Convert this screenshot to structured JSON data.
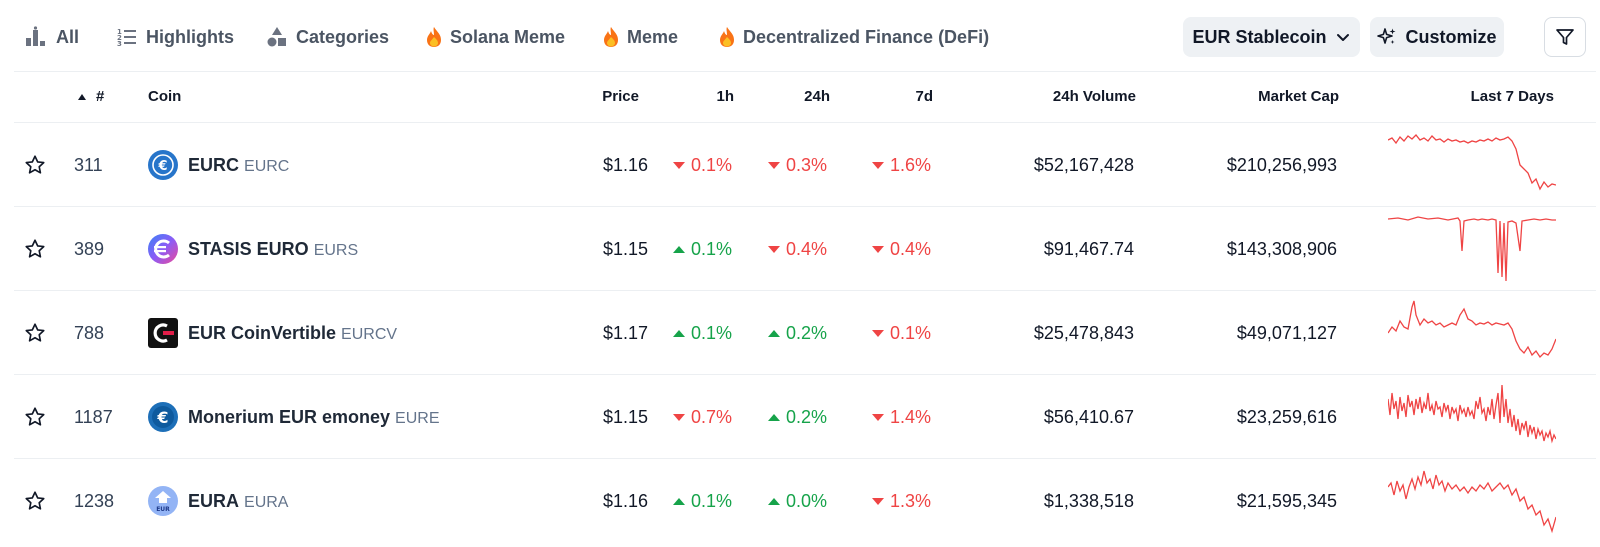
{
  "tabs": [
    {
      "label": "All",
      "icon": "bar-podium-icon"
    },
    {
      "label": "Highlights",
      "icon": "numbered-list-icon"
    },
    {
      "label": "Categories",
      "icon": "shapes-icon"
    },
    {
      "label": "Solana Meme",
      "icon": "fire-icon"
    },
    {
      "label": "Meme",
      "icon": "fire-icon"
    },
    {
      "label": "Decentralized Finance (DeFi)",
      "icon": "fire-icon"
    }
  ],
  "category_select": {
    "label": "EUR Stablecoin",
    "icon": "chevron-down-icon"
  },
  "customize": {
    "label": "Customize",
    "icon": "sparkles-icon"
  },
  "filter": {
    "icon": "funnel-icon"
  },
  "columns": {
    "rank": "#",
    "coin": "Coin",
    "price": "Price",
    "h1": "1h",
    "h24": "24h",
    "d7": "7d",
    "volume": "24h Volume",
    "market_cap": "Market Cap",
    "sparkline": "Last 7 Days"
  },
  "colors": {
    "up": "#16a34a",
    "down": "#ef4444",
    "spark": "#ef4444"
  },
  "rows": [
    {
      "rank": "311",
      "name": "EURC",
      "symbol": "EURC",
      "logo": "eurc-logo",
      "price": "$1.16",
      "h1": {
        "value": "0.1%",
        "dir": "down"
      },
      "h24": {
        "value": "0.3%",
        "dir": "down"
      },
      "d7": {
        "value": "1.6%",
        "dir": "down"
      },
      "volume": "$52,167,428",
      "market_cap": "$210,256,993"
    },
    {
      "rank": "389",
      "name": "STASIS EURO",
      "symbol": "EURS",
      "logo": "stasis-euro-logo",
      "price": "$1.15",
      "h1": {
        "value": "0.1%",
        "dir": "up"
      },
      "h24": {
        "value": "0.4%",
        "dir": "down"
      },
      "d7": {
        "value": "0.4%",
        "dir": "down"
      },
      "volume": "$91,467.74",
      "market_cap": "$143,308,906"
    },
    {
      "rank": "788",
      "name": "EUR CoinVertible",
      "symbol": "EURCV",
      "logo": "eur-coinvertible-logo",
      "price": "$1.17",
      "h1": {
        "value": "0.1%",
        "dir": "up"
      },
      "h24": {
        "value": "0.2%",
        "dir": "up"
      },
      "d7": {
        "value": "0.1%",
        "dir": "down"
      },
      "volume": "$25,478,843",
      "market_cap": "$49,071,127"
    },
    {
      "rank": "1187",
      "name": "Monerium EUR emoney",
      "symbol": "EURE",
      "logo": "monerium-logo",
      "price": "$1.15",
      "h1": {
        "value": "0.7%",
        "dir": "down"
      },
      "h24": {
        "value": "0.2%",
        "dir": "up"
      },
      "d7": {
        "value": "1.4%",
        "dir": "down"
      },
      "volume": "$56,410.67",
      "market_cap": "$23,259,616"
    },
    {
      "rank": "1238",
      "name": "EURA",
      "symbol": "EURA",
      "logo": "eura-logo",
      "price": "$1.16",
      "h1": {
        "value": "0.1%",
        "dir": "up"
      },
      "h24": {
        "value": "0.0%",
        "dir": "up"
      },
      "d7": {
        "value": "1.3%",
        "dir": "down"
      },
      "volume": "$1,338,518",
      "market_cap": "$21,595,345"
    }
  ]
}
